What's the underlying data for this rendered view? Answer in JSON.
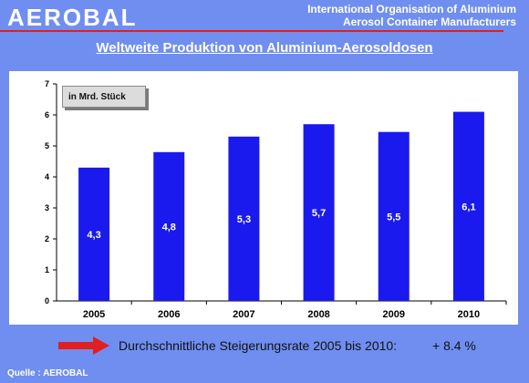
{
  "header": {
    "logo": "AEROBAL",
    "org_line1": "International Organisation of Aluminium",
    "org_line2": "Aerosol Container Manufacturers"
  },
  "chart_data": {
    "type": "bar",
    "title": "Weltweite Produktion von Aluminium-Aerosoldosen",
    "unit_label": "in Mrd. Stück",
    "categories": [
      "2005",
      "2006",
      "2007",
      "2008",
      "2009",
      "2010"
    ],
    "values": [
      4.3,
      4.8,
      5.3,
      5.7,
      5.45,
      6.1
    ],
    "value_labels": [
      "4,3",
      "4,8",
      "5,3",
      "5,7",
      "5,5",
      "6,1"
    ],
    "y_ticks": [
      "0",
      "1",
      "2",
      "3",
      "4",
      "5",
      "6",
      "7"
    ],
    "ylim": [
      0,
      7
    ],
    "grid": false,
    "bar_color": "#1a1aee"
  },
  "growth": {
    "text": "Durchschnittliche Steigerungsrate 2005 bis 2010:",
    "value": "+ 8.4 %"
  },
  "source": "Quelle : AEROBAL"
}
